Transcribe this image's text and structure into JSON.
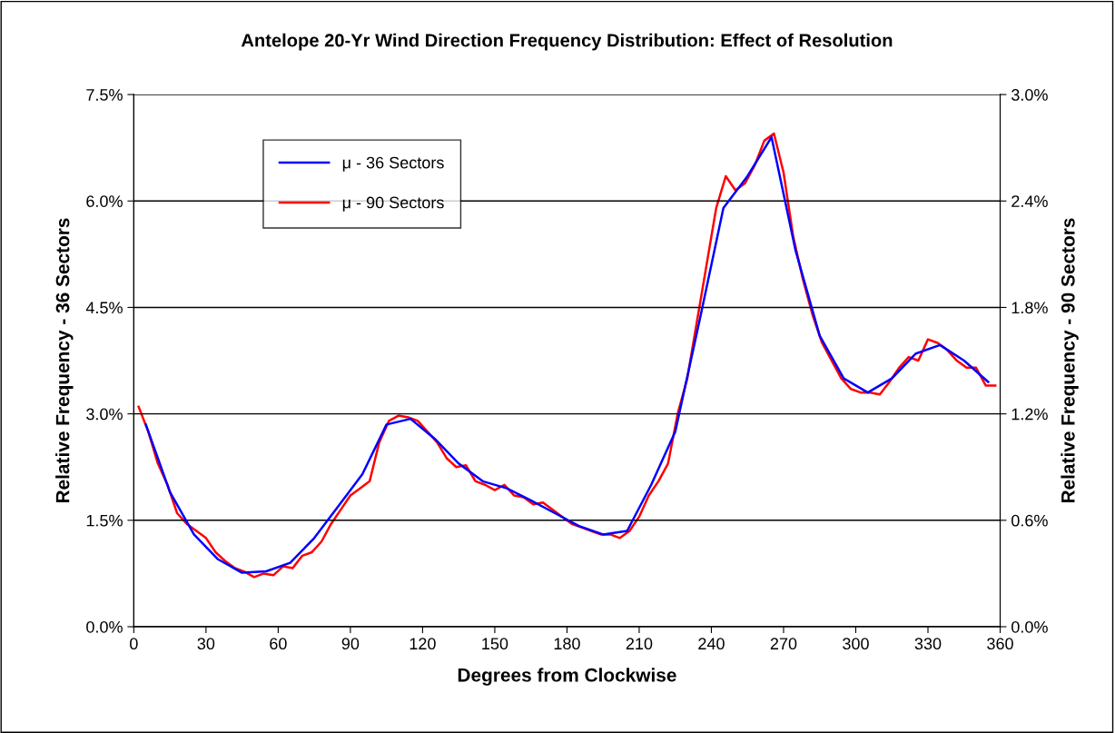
{
  "chart_data": {
    "type": "line",
    "title": "Antelope 20-Yr Wind Direction Frequency Distribution: Effect of Resolution",
    "xlabel": "Degrees from Clockwise",
    "ylabel": "Relative Frequency - 36 Sectors",
    "y2label": "Relative Frequency - 90 Sectors",
    "xlim": [
      0,
      360
    ],
    "xticks": [
      0,
      30,
      60,
      90,
      120,
      150,
      180,
      210,
      240,
      270,
      300,
      330,
      360
    ],
    "ylim": [
      0,
      7.5
    ],
    "yticks": [
      {
        "value": 0,
        "label": "0.0%"
      },
      {
        "value": 1.5,
        "label": "1.5%"
      },
      {
        "value": 3,
        "label": "3.0%"
      },
      {
        "value": 4.5,
        "label": "4.5%"
      },
      {
        "value": 6,
        "label": "6.0%"
      },
      {
        "value": 7.5,
        "label": "7.5%"
      }
    ],
    "y2lim": [
      0,
      3
    ],
    "y2ticks": [
      {
        "value": 0,
        "label": "0.0%"
      },
      {
        "value": 0.6,
        "label": "0.6%"
      },
      {
        "value": 1.2,
        "label": "1.2%"
      },
      {
        "value": 1.8,
        "label": "1.8%"
      },
      {
        "value": 2.4,
        "label": "2.4%"
      },
      {
        "value": 3,
        "label": "3.0%"
      }
    ],
    "grid": "y",
    "legend": "top left",
    "marker": "none",
    "line_style": "solid",
    "series": [
      {
        "name": "μ - 36 Sectors",
        "color": "#0000ff",
        "x": [
          5,
          15,
          25,
          35,
          45,
          55,
          65,
          75,
          85,
          95,
          105,
          115,
          125,
          135,
          145,
          155,
          165,
          175,
          185,
          195,
          205,
          215,
          225,
          235,
          245,
          255,
          265,
          275,
          285,
          295,
          305,
          315,
          325,
          335,
          345,
          355
        ],
        "values": [
          2.85,
          1.9,
          1.3,
          0.95,
          0.76,
          0.78,
          0.9,
          1.25,
          1.7,
          2.15,
          2.85,
          2.93,
          2.65,
          2.3,
          2.05,
          1.95,
          1.78,
          1.6,
          1.42,
          1.3,
          1.35,
          2.0,
          2.75,
          4.3,
          5.9,
          6.35,
          6.9,
          5.3,
          4.1,
          3.5,
          3.3,
          3.5,
          3.85,
          3.97,
          3.75,
          3.45
        ]
      },
      {
        "name": "μ - 90 Sectors",
        "color": "#ff0000",
        "axis": "y2",
        "x": [
          2,
          6,
          10,
          14,
          18,
          22,
          26,
          30,
          34,
          38,
          42,
          46,
          50,
          54,
          58,
          62,
          66,
          70,
          74,
          78,
          82,
          86,
          90,
          94,
          98,
          102,
          106,
          110,
          114,
          118,
          122,
          126,
          130,
          134,
          138,
          142,
          146,
          150,
          154,
          158,
          162,
          166,
          170,
          174,
          178,
          182,
          186,
          190,
          194,
          198,
          202,
          206,
          210,
          214,
          218,
          222,
          226,
          230,
          234,
          238,
          242,
          246,
          250,
          254,
          258,
          262,
          266,
          270,
          274,
          278,
          282,
          286,
          290,
          294,
          298,
          302,
          306,
          310,
          314,
          318,
          322,
          326,
          330,
          334,
          338,
          342,
          346,
          350,
          354,
          358
        ],
        "values": [
          1.24,
          1.1,
          0.92,
          0.8,
          0.64,
          0.58,
          0.54,
          0.5,
          0.42,
          0.37,
          0.33,
          0.31,
          0.28,
          0.3,
          0.29,
          0.34,
          0.33,
          0.4,
          0.42,
          0.48,
          0.58,
          0.66,
          0.74,
          0.78,
          0.82,
          1.04,
          1.16,
          1.19,
          1.18,
          1.16,
          1.1,
          1.04,
          0.95,
          0.9,
          0.91,
          0.82,
          0.8,
          0.77,
          0.8,
          0.74,
          0.73,
          0.69,
          0.7,
          0.66,
          0.62,
          0.58,
          0.56,
          0.54,
          0.52,
          0.52,
          0.5,
          0.54,
          0.62,
          0.74,
          0.82,
          0.92,
          1.2,
          1.4,
          1.72,
          2.04,
          2.36,
          2.54,
          2.46,
          2.5,
          2.6,
          2.74,
          2.78,
          2.56,
          2.2,
          1.96,
          1.76,
          1.6,
          1.5,
          1.4,
          1.34,
          1.32,
          1.32,
          1.31,
          1.38,
          1.46,
          1.52,
          1.5,
          1.62,
          1.6,
          1.56,
          1.5,
          1.46,
          1.46,
          1.36,
          1.36
        ]
      }
    ]
  }
}
